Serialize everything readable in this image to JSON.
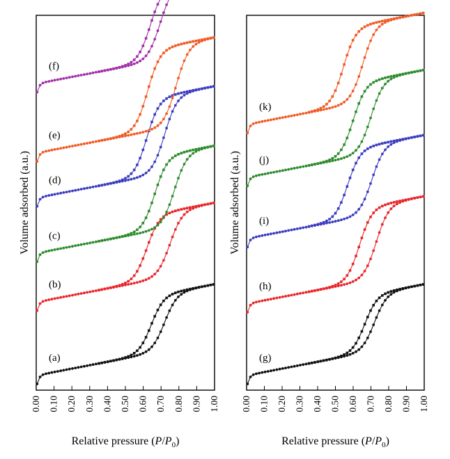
{
  "chart_data": [
    {
      "type": "line",
      "panel": "left",
      "xlabel": "Relative pressure (P/P0)",
      "ylabel": "Volume adsorbed (a.u.)",
      "xlim": [
        0,
        1
      ],
      "x_ticks": [
        "0.00",
        "0.10",
        "0.20",
        "0.30",
        "0.40",
        "0.50",
        "0.60",
        "0.70",
        "0.80",
        "0.90",
        "1.00"
      ],
      "series": [
        {
          "name": "(a)",
          "color": "#111111",
          "base": 0.02,
          "amp": 0.7,
          "mid_ads": 0.72,
          "mid_des": 0.645
        },
        {
          "name": "(b)",
          "color": "#e8262a",
          "base": 0.92,
          "amp": 0.8,
          "mid_ads": 0.75,
          "mid_des": 0.62
        },
        {
          "name": "(c)",
          "color": "#2e8b2e",
          "base": 1.52,
          "amp": 0.9,
          "mid_ads": 0.775,
          "mid_des": 0.665
        },
        {
          "name": "(d)",
          "color": "#3b3bc0",
          "base": 2.2,
          "amp": 0.95,
          "mid_ads": 0.72,
          "mid_des": 0.62
        },
        {
          "name": "(e)",
          "color": "#f05a24",
          "base": 2.75,
          "amp": 1.0,
          "mid_ads": 0.785,
          "mid_des": 0.625
        },
        {
          "name": "(f)",
          "color": "#a12fa8",
          "base": 3.6,
          "amp": 0.9,
          "mid_ads": 0.695,
          "mid_des": 0.64
        }
      ]
    },
    {
      "type": "line",
      "panel": "right",
      "xlabel": "Relative pressure (P/P0)",
      "ylabel": "Volume adsorbed (a.u.)",
      "xlim": [
        0,
        1
      ],
      "x_ticks": [
        "0.00",
        "0.10",
        "0.20",
        "0.30",
        "0.40",
        "0.50",
        "0.60",
        "0.70",
        "0.80",
        "0.90",
        "1.00"
      ],
      "series": [
        {
          "name": "(g)",
          "color": "#111111",
          "base": 0.02,
          "amp": 0.7,
          "mid_ads": 0.72,
          "mid_des": 0.665
        },
        {
          "name": "(h)",
          "color": "#e8262a",
          "base": 0.9,
          "amp": 0.9,
          "mid_ads": 0.73,
          "mid_des": 0.635
        },
        {
          "name": "(i)",
          "color": "#3b3bc0",
          "base": 1.7,
          "amp": 0.85,
          "mid_ads": 0.705,
          "mid_des": 0.57
        },
        {
          "name": "(j)",
          "color": "#2e8b2e",
          "base": 2.45,
          "amp": 0.9,
          "mid_ads": 0.7,
          "mid_des": 0.6
        },
        {
          "name": "(k)",
          "color": "#f05a24",
          "base": 3.1,
          "amp": 0.95,
          "mid_ads": 0.655,
          "mid_des": 0.545
        }
      ]
    }
  ]
}
